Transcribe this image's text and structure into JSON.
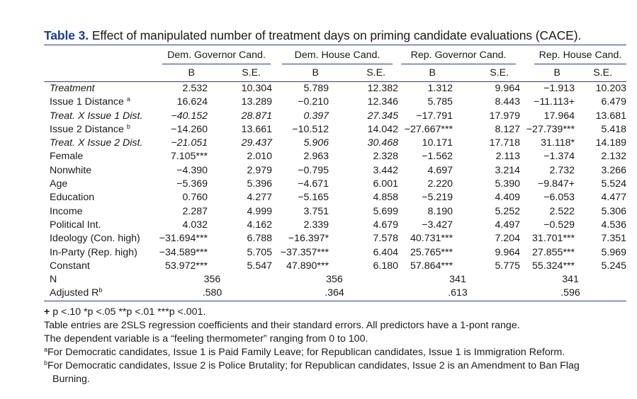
{
  "table": {
    "caption_label": "Table 3.",
    "caption_text": " Effect of manipulated number of treatment days on priming candidate evaluations (CACE).",
    "groups": [
      "Dem. Governor Cand.",
      "Dem. House Cand.",
      "Rep. Governor Cand.",
      "Rep. House Cand."
    ],
    "subheaders": [
      "B",
      "S.E.",
      "B",
      "S.E.",
      "B",
      "S.E.",
      "B",
      "S.E."
    ],
    "rows": [
      {
        "label": "Treatment",
        "sup": "",
        "italic": true,
        "cells": [
          "2.532",
          "10.304",
          "5.789",
          "12.382",
          "1.312",
          "9.964",
          "−1.913",
          "10.203"
        ],
        "cell_italic": false
      },
      {
        "label": "Issue 1 Distance ",
        "sup": "a",
        "italic": false,
        "cells": [
          "16.624",
          "13.289",
          "−0.210",
          "12.346",
          "5.785",
          "8.443",
          "−11.113+",
          "6.479"
        ],
        "cell_italic": false
      },
      {
        "label": "Treat. X Issue 1 Dist.",
        "sup": "",
        "italic": true,
        "cells": [
          "−40.152",
          "28.871",
          "0.397",
          "27.345",
          "−17.791",
          "17.979",
          "17.964",
          "13.681"
        ],
        "cell_italic": "dem"
      },
      {
        "label": "Issue 2 Distance ",
        "sup": "b",
        "italic": false,
        "cells": [
          "−14.260",
          "13.661",
          "−10.512",
          "14.042",
          "−27.667***",
          "8.127",
          "−27.739***",
          "5.418"
        ],
        "cell_italic": false
      },
      {
        "label": "Treat. X Issue 2 Dist.",
        "sup": "",
        "italic": true,
        "cells": [
          "−21.051",
          "29.437",
          "5.906",
          "30.468",
          "10.171",
          "17.718",
          "31.118*",
          "14.189"
        ],
        "cell_italic": "dem"
      },
      {
        "label": "Female",
        "sup": "",
        "italic": false,
        "cells": [
          "7.105***",
          "2.010",
          "2.963",
          "2.328",
          "−1.562",
          "2.113",
          "−1.374",
          "2.132"
        ],
        "cell_italic": false
      },
      {
        "label": "Nonwhite",
        "sup": "",
        "italic": false,
        "cells": [
          "−4.390",
          "2.979",
          "−0.795",
          "3.442",
          "4.697",
          "3.214",
          "2.732",
          "3.266"
        ],
        "cell_italic": false
      },
      {
        "label": "Age",
        "sup": "",
        "italic": false,
        "cells": [
          "−5.369",
          "5.396",
          "−4.671",
          "6.001",
          "2.220",
          "5.390",
          "−9.847+",
          "5.524"
        ],
        "cell_italic": false
      },
      {
        "label": "Education",
        "sup": "",
        "italic": false,
        "cells": [
          "0.760",
          "4.277",
          "−5.165",
          "4.858",
          "−5.219",
          "4.409",
          "−6.053",
          "4.477"
        ],
        "cell_italic": false
      },
      {
        "label": "Income",
        "sup": "",
        "italic": false,
        "cells": [
          "2.287",
          "4.999",
          "3.751",
          "5.699",
          "8.190",
          "5.252",
          "2.522",
          "5.306"
        ],
        "cell_italic": false
      },
      {
        "label": "Political Int.",
        "sup": "",
        "italic": false,
        "cells": [
          "4.032",
          "4.162",
          "2.339",
          "4.679",
          "−3.427",
          "4.497",
          "−0.529",
          "4.536"
        ],
        "cell_italic": false
      },
      {
        "label": "Ideology (Con. high)",
        "sup": "",
        "italic": false,
        "cells": [
          "−31.694***",
          "6.788",
          "−16.397*",
          "7.578",
          "40.731***",
          "7.204",
          "31.701***",
          "7.351"
        ],
        "cell_italic": false
      },
      {
        "label": "In-Party (Rep. high)",
        "sup": "",
        "italic": false,
        "cells": [
          "−34.589***",
          "5.705",
          "−37.357***",
          "6.404",
          "25.765***",
          "9.964",
          "27.855***",
          "5.969"
        ],
        "cell_italic": false
      },
      {
        "label": "Constant",
        "sup": "",
        "italic": false,
        "cells": [
          "53.972***",
          "5.547",
          "47.890***",
          "6.180",
          "57.864***",
          "5.775",
          "55.324***",
          "5.245"
        ],
        "cell_italic": false
      }
    ],
    "n_row": {
      "label": "N",
      "values": [
        "356",
        "356",
        "341",
        "341"
      ]
    },
    "r2_row": {
      "label": "Adjusted R",
      "sup": "b",
      "values": [
        ".580",
        ".364",
        ".613",
        ".596"
      ]
    }
  },
  "notes": {
    "sig_plus": "+",
    "sig_rest": " p <.10 *p <.05 **p <.01 ***p <.001.",
    "line1": "Table entries are 2SLS regression coefficients and their standard errors. All predictors have a 1-pont range.",
    "line2": "The dependent variable is a “feeling thermometer” ranging from 0 to 100.",
    "fn_a_mark": "a",
    "fn_a": "For Democratic candidates, Issue 1 is Paid Family Leave; for Republican candidates, Issue 1 is Immigration Reform.",
    "fn_b_mark": "b",
    "fn_b_1": "For Democratic candidates, Issue 2 is Police Brutality; for Republican candidates, Issue 2 is an Amendment to Ban Flag",
    "fn_b_2": "Burning."
  }
}
